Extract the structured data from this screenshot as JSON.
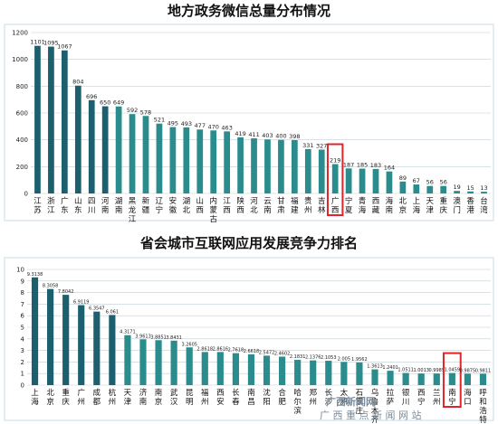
{
  "watermark": "广 西 重 点 新 闻 网 站",
  "watermark_logo": "广西新闻网",
  "colors": {
    "bar_teal": "#2a8c8c",
    "bar_dark": "#1c5f6e",
    "highlight": "#e0242b",
    "grid": "#bfcfd6",
    "frame": "#c9dde4"
  },
  "chart_data": [
    {
      "type": "bar",
      "title": "地方政务微信总量分布情况",
      "ylim": [
        0,
        1200
      ],
      "yticks": [
        "0",
        "200",
        "400",
        "600",
        "800",
        "1000",
        "1200"
      ],
      "categories": [
        "江苏",
        "浙江",
        "广东",
        "山东",
        "四川",
        "河南",
        "湖南",
        "黑龙江",
        "新疆",
        "辽宁",
        "安徽",
        "湖北",
        "山西",
        "内蒙古",
        "江西",
        "陕西",
        "河北",
        "云南",
        "甘肃",
        "福建",
        "贵州",
        "吉林",
        "广西",
        "宁夏",
        "青海",
        "西藏",
        "海南",
        "北京",
        "上海",
        "天津",
        "重庆",
        "澳门",
        "香港",
        "台湾"
      ],
      "values": [
        1101,
        1095,
        1067,
        804,
        696,
        650,
        649,
        592,
        578,
        521,
        495,
        493,
        477,
        470,
        463,
        419,
        411,
        403,
        400,
        398,
        331,
        327,
        219,
        187,
        185,
        183,
        164,
        89,
        67,
        56,
        56,
        19,
        15,
        13
      ],
      "data_labels": [
        "1101",
        "1095",
        "1067",
        "804",
        "696",
        "650",
        "649",
        "592",
        "578",
        "521",
        "495",
        "493",
        "477",
        "470",
        "463",
        "419",
        "411",
        "403",
        "400",
        "398",
        "331",
        "327",
        "219",
        "187",
        "185",
        "183",
        "164",
        "89",
        "67",
        "56",
        "56",
        "19",
        "15",
        "13"
      ],
      "highlight": "广西"
    },
    {
      "type": "bar",
      "title": "省会城市互联网应用发展竞争力排名",
      "ylim": [
        0,
        10
      ],
      "yticks": [
        "0",
        "1",
        "2",
        "3",
        "4",
        "5",
        "6",
        "7",
        "8",
        "9",
        "10"
      ],
      "categories": [
        "上海",
        "北京",
        "重庆",
        "广州",
        "成都",
        "杭州",
        "天津",
        "济南",
        "南京",
        "武汉",
        "昆明",
        "福州",
        "西安",
        "长春",
        "南昌",
        "沈阳",
        "合肥",
        "哈尔滨",
        "郑州",
        "长沙",
        "太原",
        "石家庄",
        "乌鲁木齐",
        "拉萨",
        "银川",
        "西宁",
        "兰州",
        "南宁",
        "海口",
        "呼和浩特"
      ],
      "values": [
        9.3138,
        8.3058,
        7.8042,
        6.9119,
        6.3547,
        6.061,
        4.3171,
        3.9613,
        3.8851,
        3.8431,
        3.2605,
        2.8618,
        2.8616,
        2.7618,
        2.6618,
        2.5472,
        2.4602,
        2.1831,
        2.1376,
        2.1053,
        2.005,
        1.9562,
        1.3613,
        1.2401,
        1.0511,
        1.0013,
        0.9985,
        1.0459,
        0.9875,
        0.9811
      ],
      "data_labels": [
        "9.3138",
        "8.3058",
        "7.8042",
        "6.9119",
        "6.3547",
        "6.061",
        "4.3171",
        "3.9613",
        "3.8851",
        "3.8431",
        "3.2605",
        "2.8618",
        "2.8616",
        "2.7618",
        "2.6618",
        "2.5472",
        "2.4602",
        "2.1831",
        "2.1376",
        "2.1053",
        "2.005",
        "1.9562",
        "1.3613",
        "1.2401",
        "1.0511",
        "1.0013",
        "0.9985",
        "1.0459",
        "0.9875",
        "0.9811"
      ],
      "highlight": "南宁"
    }
  ]
}
